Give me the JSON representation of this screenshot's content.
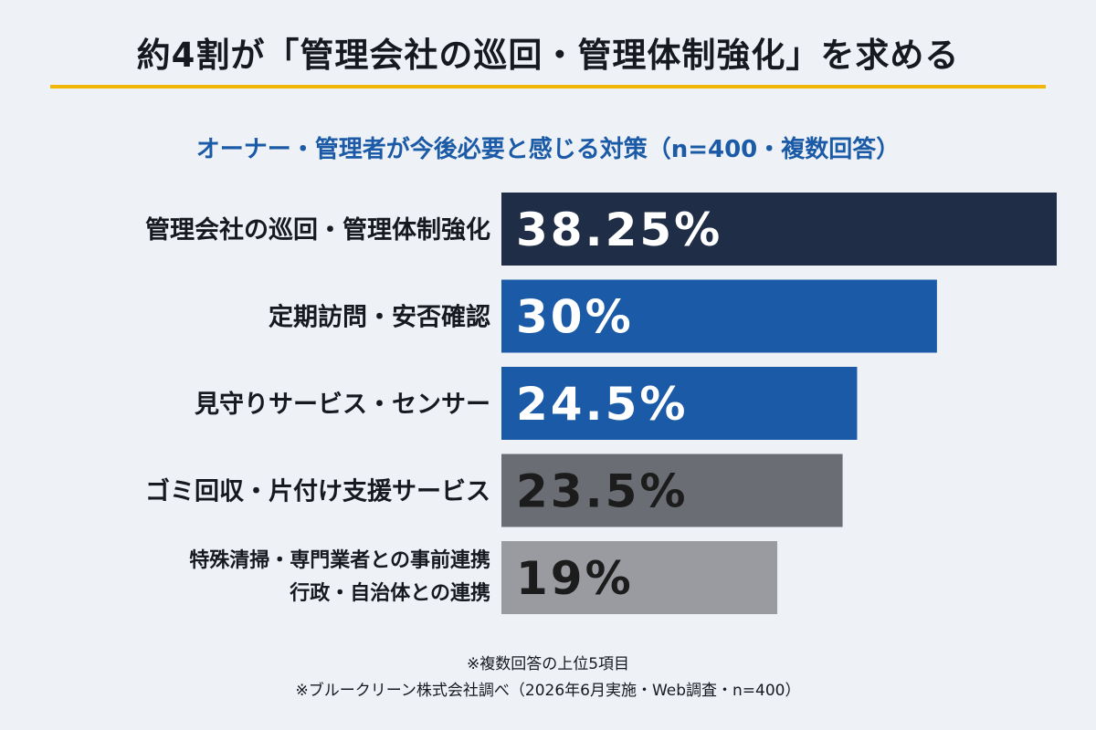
{
  "header": {
    "title": "約4割が「管理会社の巡回・管理体制強化」を求める"
  },
  "chart_data": {
    "type": "bar",
    "orientation": "horizontal",
    "title": "オーナー・管理者が今後必要と感じる対策（n=400・複数回答）",
    "categories": [
      [
        "管理会社の巡回・管理体制強化"
      ],
      [
        "定期訪問・安否確認"
      ],
      [
        "見守りサービス・センサー"
      ],
      [
        "ゴミ回収・片付け支援サービス"
      ],
      [
        "特殊清掃・専門業者との事前連携",
        "行政・自治体との連携"
      ]
    ],
    "values": [
      38.25,
      30,
      24.5,
      23.5,
      19
    ],
    "value_labels": [
      "38.25%",
      "30%",
      "24.5%",
      "23.5%",
      "19%"
    ],
    "colors": [
      "#1f2d46",
      "#1a5aa6",
      "#1a5aa6",
      "#6a6d74",
      "#9a9ba1"
    ],
    "value_text_colors": [
      "#ffffff",
      "#ffffff",
      "#ffffff",
      "#1c1c1c",
      "#1c1c1c"
    ],
    "xlim": [
      0,
      40
    ],
    "grid": false,
    "legend": "none"
  },
  "footnotes": {
    "line1": "※複数回答の上位5項目",
    "line2": "※ブルークリーン株式会社調べ（2026年6月実施・Web調査・n=400）"
  }
}
